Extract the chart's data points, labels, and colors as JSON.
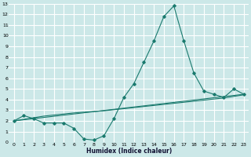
{
  "xlabel": "Humidex (Indice chaleur)",
  "ylabel": "",
  "background_color": "#cce8e8",
  "grid_color": "#ffffff",
  "line_color": "#1a7a6e",
  "xlim": [
    -0.5,
    23.5
  ],
  "ylim": [
    0,
    13
  ],
  "yticks": [
    0,
    1,
    2,
    3,
    4,
    5,
    6,
    7,
    8,
    9,
    10,
    11,
    12,
    13
  ],
  "xticks": [
    0,
    1,
    2,
    3,
    4,
    5,
    6,
    7,
    8,
    9,
    10,
    11,
    12,
    13,
    14,
    15,
    16,
    17,
    18,
    19,
    20,
    21,
    22,
    23
  ],
  "main_x": [
    0,
    1,
    2,
    3,
    4,
    5,
    6,
    7,
    8,
    9,
    10,
    11,
    12,
    13,
    14,
    15,
    16,
    17,
    18,
    19,
    20,
    21,
    22,
    23
  ],
  "main_y": [
    2,
    2.5,
    2.2,
    1.8,
    1.8,
    1.8,
    1.3,
    0.3,
    0.2,
    0.6,
    2.2,
    4.2,
    5.5,
    7.5,
    9.5,
    11.8,
    12.8,
    9.5,
    6.5,
    4.8,
    4.5,
    4.2,
    5.0,
    4.5
  ],
  "trend1_x": [
    0,
    1,
    2,
    3,
    4,
    5,
    6,
    7,
    8,
    9,
    10,
    11,
    12,
    13,
    14,
    15,
    16,
    17,
    18,
    19,
    20,
    21,
    22,
    23
  ],
  "trend1_y": [
    2.0,
    2.15,
    2.3,
    2.45,
    2.55,
    2.65,
    2.75,
    2.82,
    2.88,
    2.95,
    3.05,
    3.15,
    3.25,
    3.35,
    3.45,
    3.55,
    3.65,
    3.75,
    3.85,
    3.95,
    4.05,
    4.15,
    4.3,
    4.45
  ],
  "trend2_x": [
    0,
    23
  ],
  "trend2_y": [
    2.0,
    4.5
  ]
}
